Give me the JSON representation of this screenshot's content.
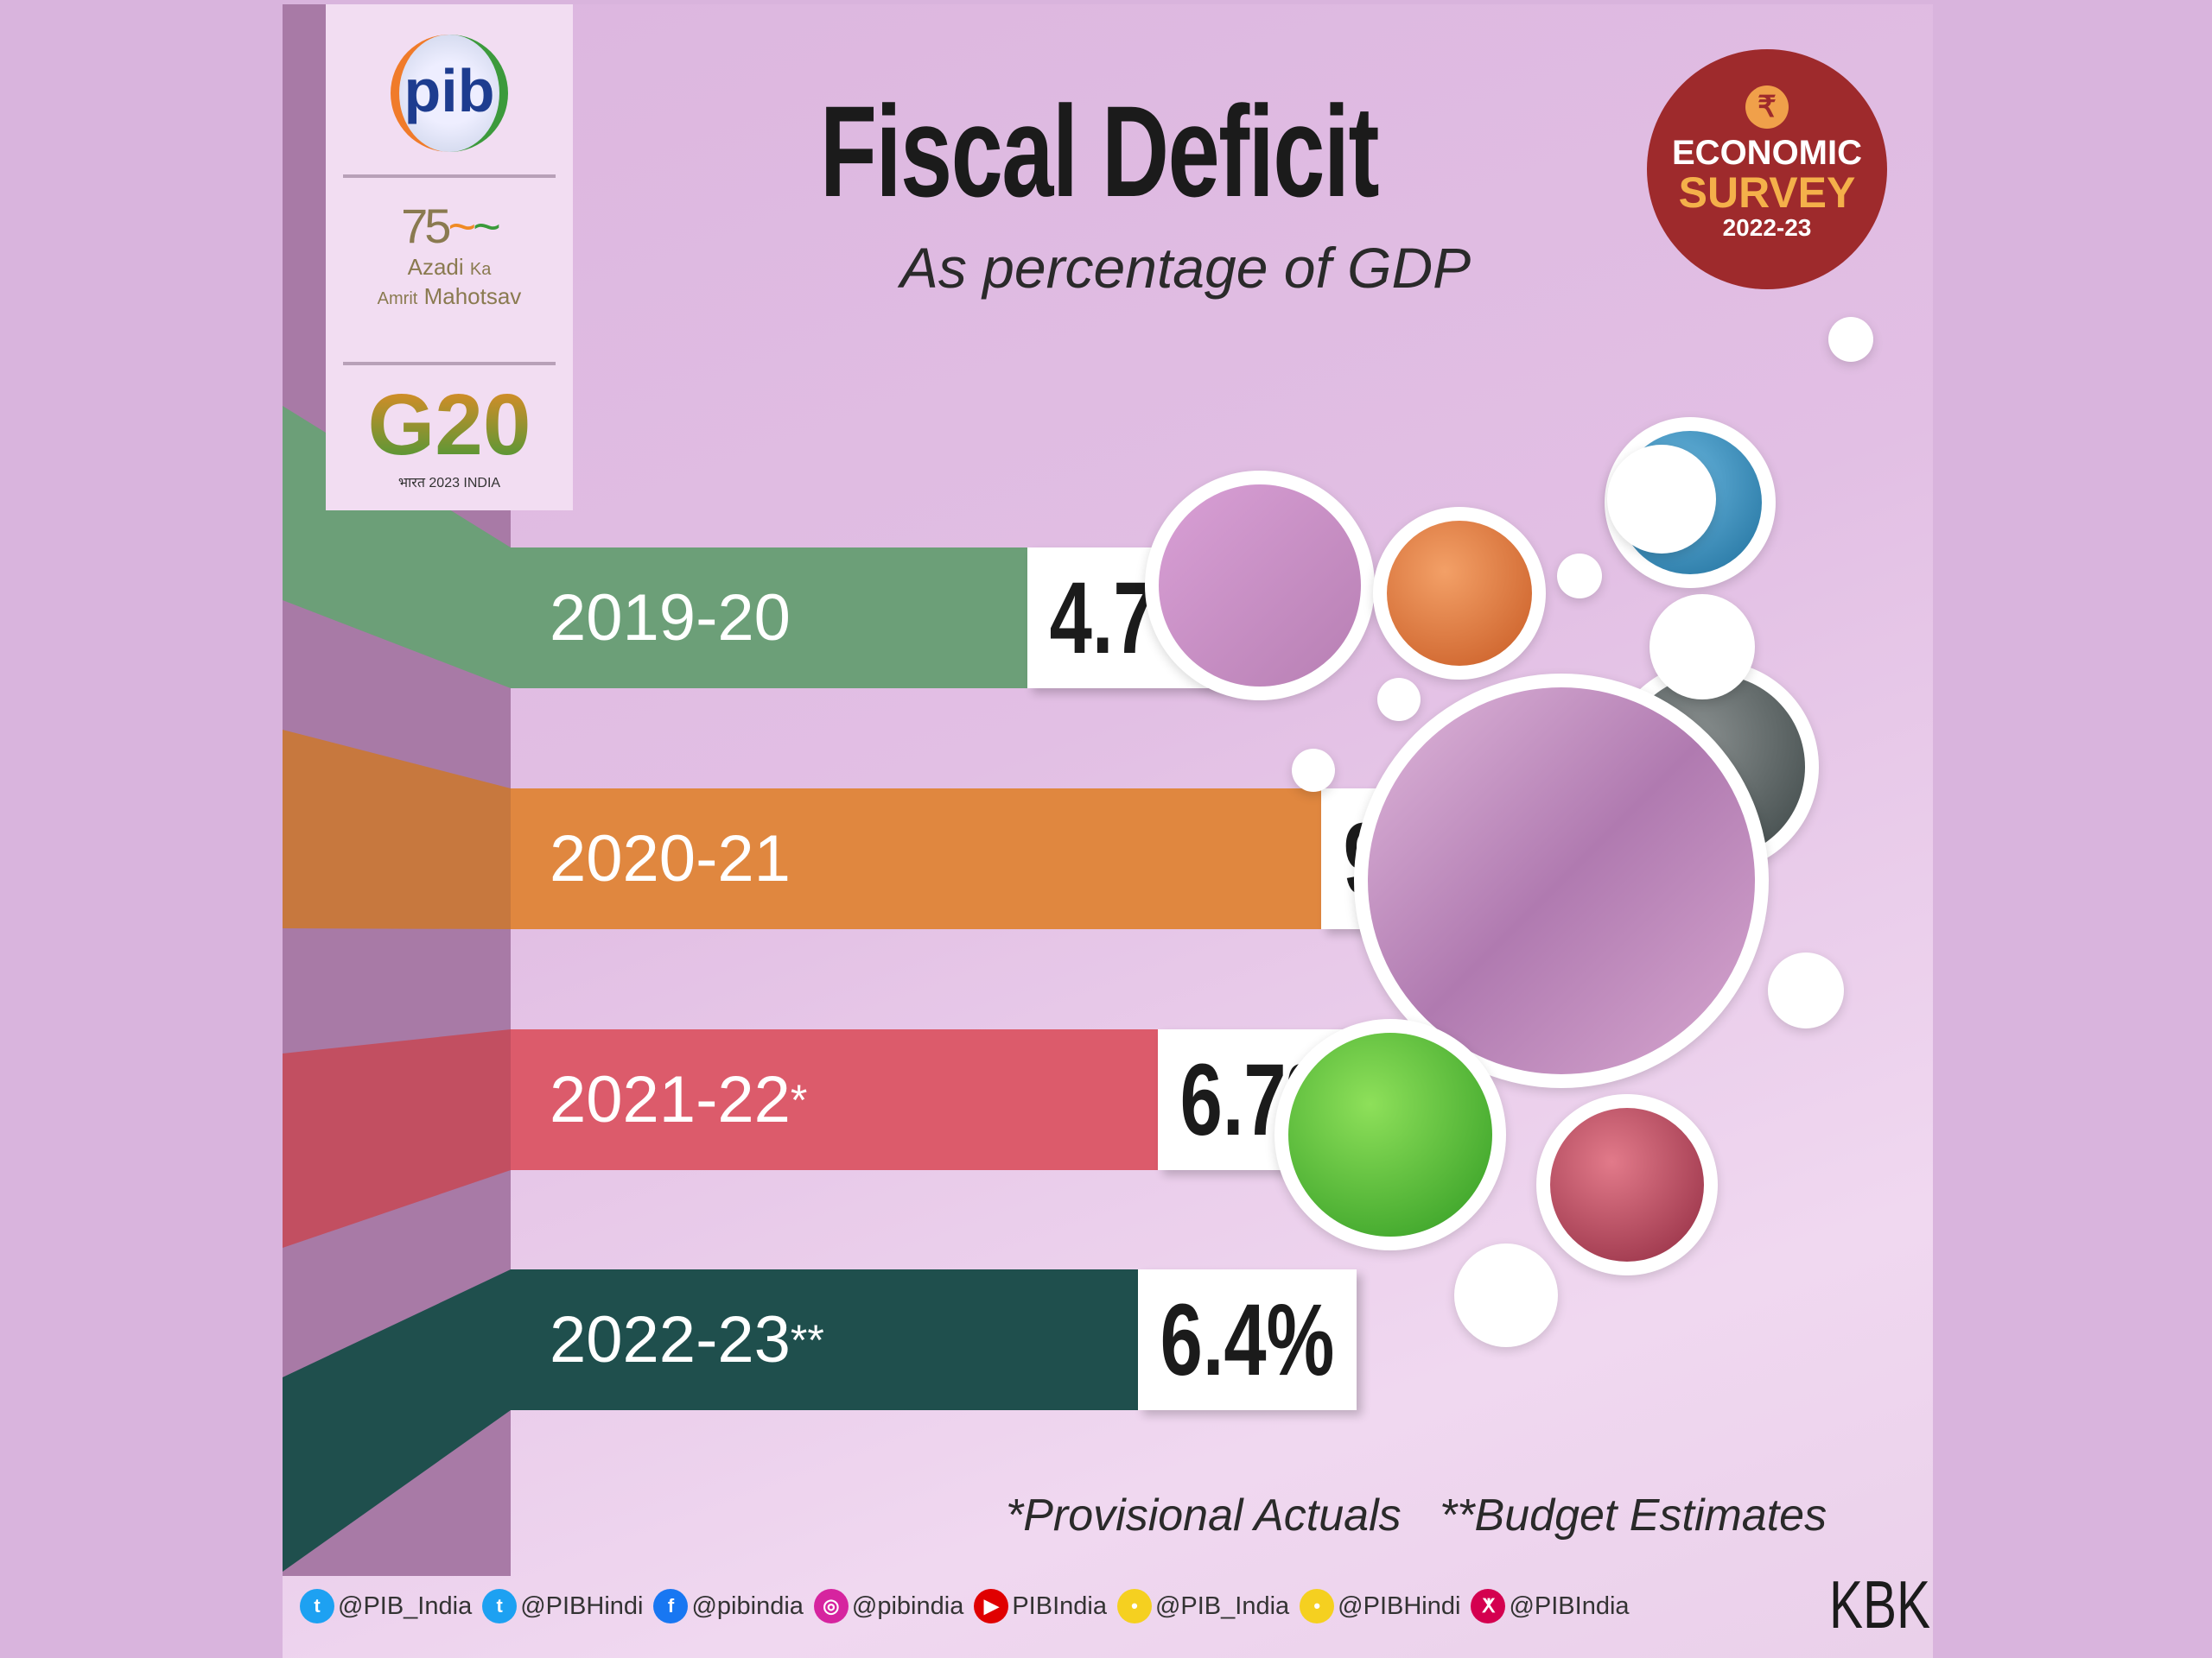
{
  "header": {
    "title": "Fiscal Deficit",
    "subtitle": "As percentage of GDP"
  },
  "logos": {
    "pib": "pib",
    "azadi_line1": "Azadi",
    "azadi_ka": "Ka",
    "azadi_line2": "Amrit",
    "azadi_line3": "Mahotsav",
    "g20": "G20",
    "g20_sub": "भारत 2023 INDIA"
  },
  "badge": {
    "symbol": "₹",
    "line1": "ECONOMIC",
    "line2": "SURVEY",
    "line3": "2022-23"
  },
  "chart_data": {
    "type": "bar",
    "title": "Fiscal Deficit",
    "subtitle": "As percentage of GDP",
    "categories": [
      "2019-20",
      "2020-21",
      "2021-22",
      "2022-23"
    ],
    "category_marks": [
      "",
      "",
      "*",
      "**"
    ],
    "values": [
      4.7,
      9.2,
      6.7,
      6.4
    ],
    "value_labels": [
      "4.7%",
      "9.2%",
      "6.7%",
      "6.4%"
    ],
    "colors": [
      "#6c9f78",
      "#e0873f",
      "#dc5b6b",
      "#1f4f4d"
    ],
    "unit": "% of GDP"
  },
  "footnotes": [
    "*Provisional Actuals",
    "**Budget Estimates"
  ],
  "footer": {
    "socials": [
      {
        "icon": "twitter-icon",
        "handle": "@PIB_India",
        "color": "#1da1f2",
        "glyph": "t"
      },
      {
        "icon": "twitter-icon",
        "handle": "@PIBHindi",
        "color": "#1da1f2",
        "glyph": "t"
      },
      {
        "icon": "facebook-icon",
        "handle": "@pibindia",
        "color": "#1877f2",
        "glyph": "f"
      },
      {
        "icon": "instagram-icon",
        "handle": "@pibindia",
        "color": "#d6249f",
        "glyph": "◎"
      },
      {
        "icon": "youtube-icon",
        "handle": "PIBIndia",
        "color": "#e00000",
        "glyph": "▶"
      },
      {
        "icon": "koo-icon",
        "handle": "@PIB_India",
        "color": "#f5d020",
        "glyph": "•"
      },
      {
        "icon": "koo-icon",
        "handle": "@PIBHindi",
        "color": "#f5d020",
        "glyph": "•"
      },
      {
        "icon": "sharechat-icon",
        "handle": "@PIBIndia",
        "color": "#d4004f",
        "glyph": "ⵅ"
      }
    ],
    "signature": "KBK"
  }
}
